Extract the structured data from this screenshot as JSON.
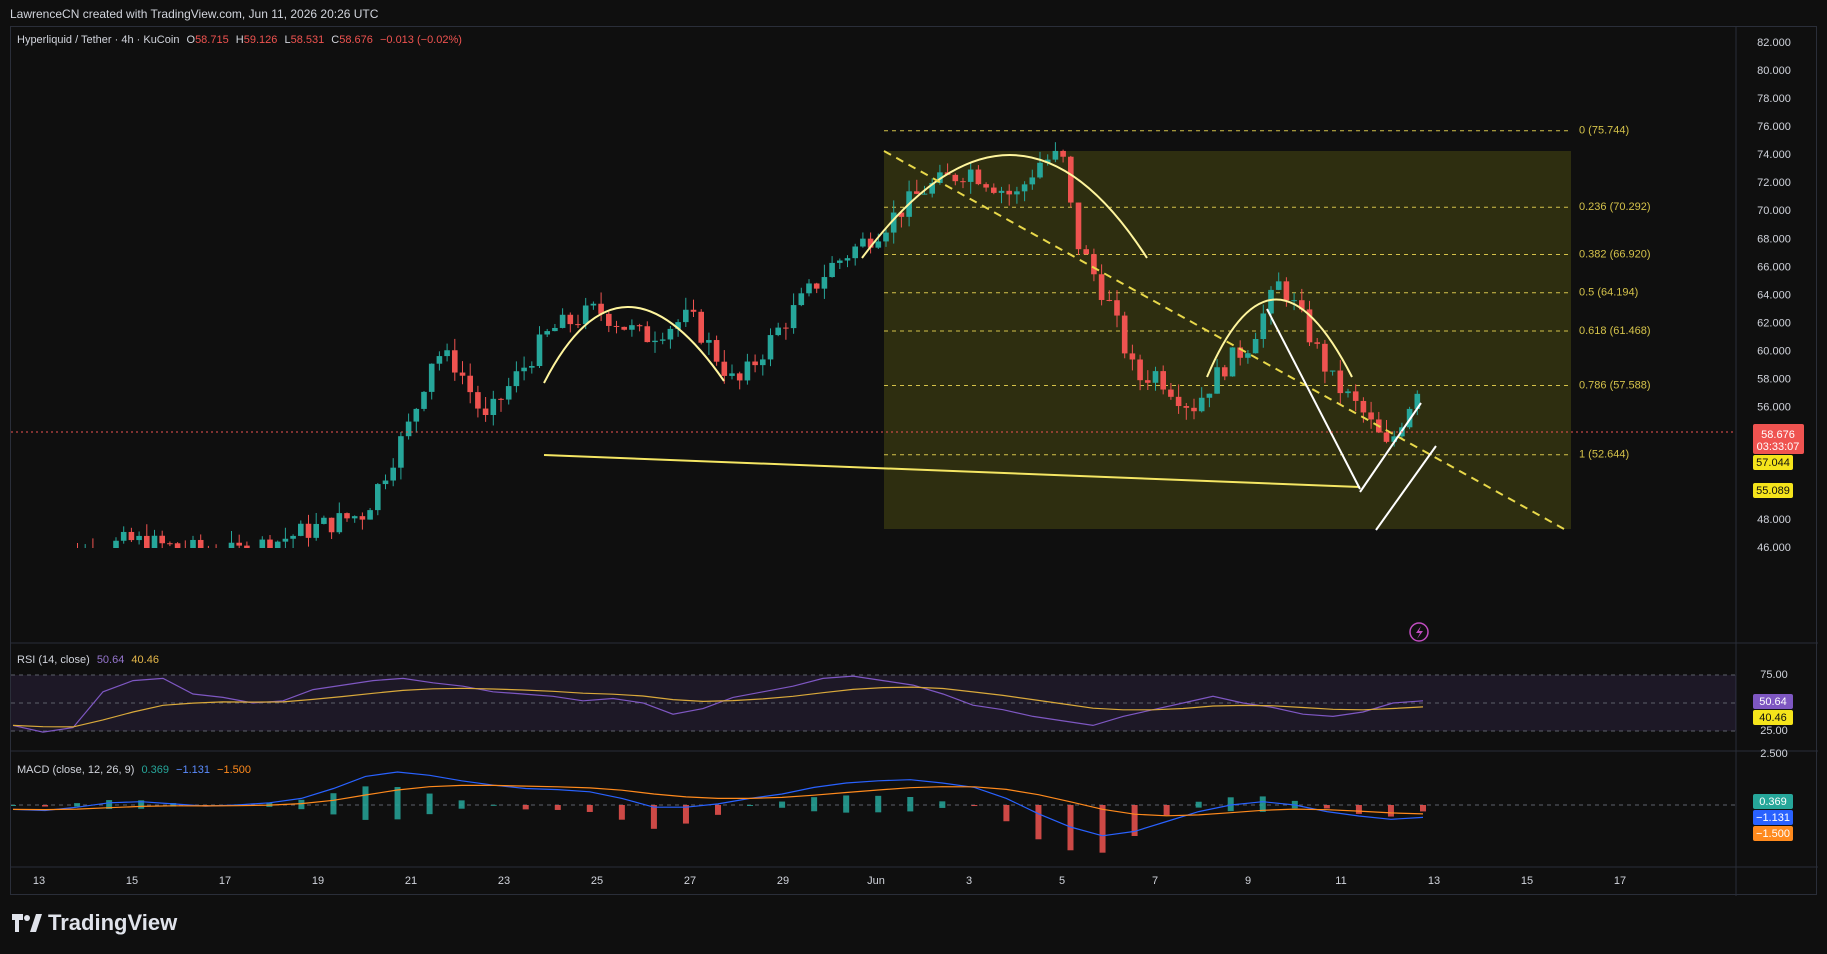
{
  "header": {
    "credit": "LawrenceCN created with TradingView.com, Jun 11, 2026 20:26 UTC"
  },
  "symbol": {
    "name": "Hyperliquid / Tether · 4h · KuCoin",
    "o_label": "O",
    "o": "58.715",
    "h_label": "H",
    "h": "59.126",
    "l_label": "L",
    "l": "58.531",
    "c_label": "C",
    "c": "58.676",
    "change": "−0.013 (−0.02%)"
  },
  "colors": {
    "up": "#26a69a",
    "down": "#ef5350",
    "fib_fill": "#3a3a12",
    "fib_line": "#d4c24a",
    "pattern": "#fff59d",
    "neckline": "#f5e663",
    "rsi": "#7e57c2",
    "rsi_ma": "#d9a93b",
    "macd": "#2962ff",
    "signal": "#ff8a1d"
  },
  "price_axis": {
    "ticks": [
      "82.000",
      "80.000",
      "78.000",
      "76.000",
      "74.000",
      "72.000",
      "70.000",
      "68.000",
      "66.000",
      "64.000",
      "62.000",
      "60.000",
      "58.000",
      "56.000",
      "54.000",
      "52.000",
      "50.000",
      "48.000",
      "46.000"
    ],
    "last_price": "58.676",
    "countdown": "03:33:07",
    "tag_1": "57.044",
    "tag_2": "55.089"
  },
  "time_axis": {
    "labels": [
      "13",
      "15",
      "17",
      "19",
      "21",
      "23",
      "25",
      "27",
      "29",
      "Jun",
      "3",
      "5",
      "7",
      "9",
      "11",
      "13",
      "15",
      "17"
    ]
  },
  "fib_levels": [
    {
      "ratio": "0",
      "price": 75.744,
      "label": "0 (75.744)"
    },
    {
      "ratio": "0.236",
      "price": 70.292,
      "label": "0.236 (70.292)"
    },
    {
      "ratio": "0.382",
      "price": 66.92,
      "label": "0.382 (66.920)"
    },
    {
      "ratio": "0.5",
      "price": 64.194,
      "label": "0.5 (64.194)"
    },
    {
      "ratio": "0.618",
      "price": 61.468,
      "label": "0.618 (61.468)"
    },
    {
      "ratio": "0.786",
      "price": 57.588,
      "label": "0.786 (57.588)"
    },
    {
      "ratio": "1",
      "price": 52.644,
      "label": "1 (52.644)"
    }
  ],
  "rsi": {
    "label": "RSI (14, close)",
    "value": "50.64",
    "ma": "40.46",
    "axis": [
      "75.00",
      "25.00"
    ]
  },
  "macd": {
    "label": "MACD (close, 12, 26, 9)",
    "hist": "0.369",
    "macd": "−1.131",
    "signal": "−1.500",
    "axis": [
      "2.500"
    ]
  },
  "chart_data": {
    "type": "candlestick",
    "title": "Hyperliquid / Tether · 4h · KuCoin",
    "ylim": [
      45.5,
      83
    ],
    "x_range_days": [
      "May 12",
      "Jun 18"
    ],
    "close_path": [
      {
        "x": "May 13",
        "y": 45.0
      },
      {
        "x": "May 15",
        "y": 46.5
      },
      {
        "x": "May 17",
        "y": 45.5
      },
      {
        "x": "May 18",
        "y": 46.4
      },
      {
        "x": "May 19",
        "y": 47.5
      },
      {
        "x": "May 20",
        "y": 48.5
      },
      {
        "x": "May 21",
        "y": 55.0
      },
      {
        "x": "May 21.5",
        "y": 60.0
      },
      {
        "x": "May 22",
        "y": 59.0
      },
      {
        "x": "May 22.6",
        "y": 55.0
      },
      {
        "x": "May 23",
        "y": 57.0
      },
      {
        "x": "May 24",
        "y": 61.5
      },
      {
        "x": "May 25",
        "y": 63.0
      },
      {
        "x": "May 26",
        "y": 61.0
      },
      {
        "x": "May 27",
        "y": 62.5
      },
      {
        "x": "May 28",
        "y": 57.5
      },
      {
        "x": "May 29",
        "y": 62.0
      },
      {
        "x": "May 30",
        "y": 66.0
      },
      {
        "x": "May 31",
        "y": 68.5
      },
      {
        "x": "Jun 1",
        "y": 71.5
      },
      {
        "x": "Jun 2",
        "y": 73.0
      },
      {
        "x": "Jun 3",
        "y": 71.0
      },
      {
        "x": "Jun 3.5",
        "y": 73.5
      },
      {
        "x": "Jun 4",
        "y": 74.0
      },
      {
        "x": "Jun 4.3",
        "y": 68.0
      },
      {
        "x": "Jun 5",
        "y": 63.5
      },
      {
        "x": "Jun 5.6",
        "y": 58.0
      },
      {
        "x": "Jun 6",
        "y": 58.5
      },
      {
        "x": "Jun 6.8",
        "y": 56.0
      },
      {
        "x": "Jun 7.5",
        "y": 59.0
      },
      {
        "x": "Jun 8",
        "y": 60.5
      },
      {
        "x": "Jun 8.7",
        "y": 65.0
      },
      {
        "x": "Jun 9.2",
        "y": 62.0
      },
      {
        "x": "Jun 9.8",
        "y": 58.0
      },
      {
        "x": "Jun 10.5",
        "y": 55.5
      },
      {
        "x": "Jun 11",
        "y": 53.0
      },
      {
        "x": "Jun 11.5",
        "y": 56.5
      },
      {
        "x": "Jun 11.8",
        "y": 58.676
      }
    ]
  }
}
